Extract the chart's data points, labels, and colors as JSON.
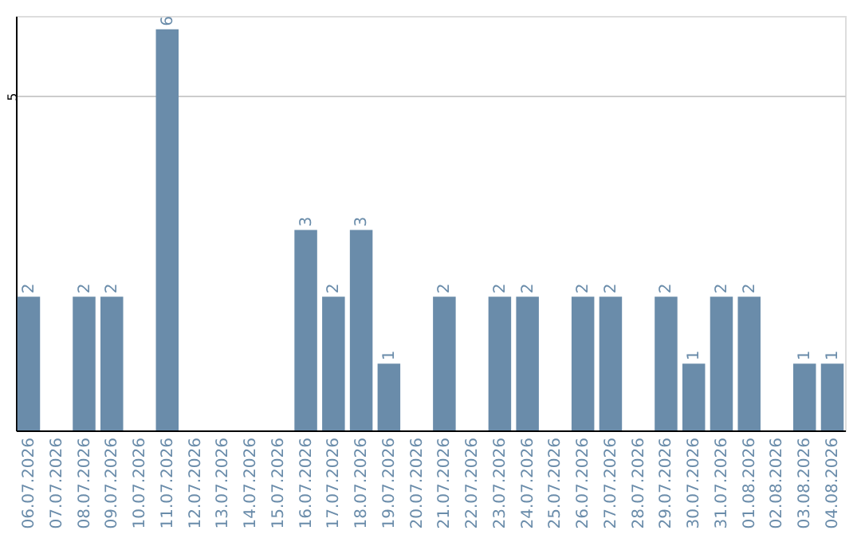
{
  "chart_data": {
    "type": "bar",
    "categories": [
      "06.07.2026",
      "07.07.2026",
      "08.07.2026",
      "09.07.2026",
      "10.07.2026",
      "11.07.2026",
      "12.07.2026",
      "13.07.2026",
      "14.07.2026",
      "15.07.2026",
      "16.07.2026",
      "17.07.2026",
      "18.07.2026",
      "19.07.2026",
      "20.07.2026",
      "21.07.2026",
      "22.07.2026",
      "23.07.2026",
      "24.07.2026",
      "25.07.2026",
      "26.07.2026",
      "27.07.2026",
      "28.07.2026",
      "29.07.2026",
      "30.07.2026",
      "31.07.2026",
      "01.08.2026",
      "02.08.2026",
      "03.08.2026",
      "04.08.2026"
    ],
    "values": [
      2,
      0,
      2,
      2,
      0,
      6,
      0,
      0,
      0,
      0,
      3,
      2,
      3,
      1,
      0,
      2,
      0,
      2,
      2,
      0,
      2,
      2,
      0,
      2,
      1,
      2,
      2,
      0,
      1,
      1
    ],
    "value_labels": [
      "2",
      null,
      "2",
      "2",
      null,
      "6",
      null,
      null,
      null,
      null,
      "3",
      "2",
      "3",
      "1",
      null,
      "2",
      null,
      "2",
      "2",
      null,
      "2",
      "2",
      null,
      "2",
      "1",
      "2",
      "2",
      null,
      "1",
      "1"
    ],
    "color": "#6a8caa",
    "ylim": [
      0,
      6.2
    ],
    "yticks": [
      5
    ],
    "grid": "y"
  }
}
